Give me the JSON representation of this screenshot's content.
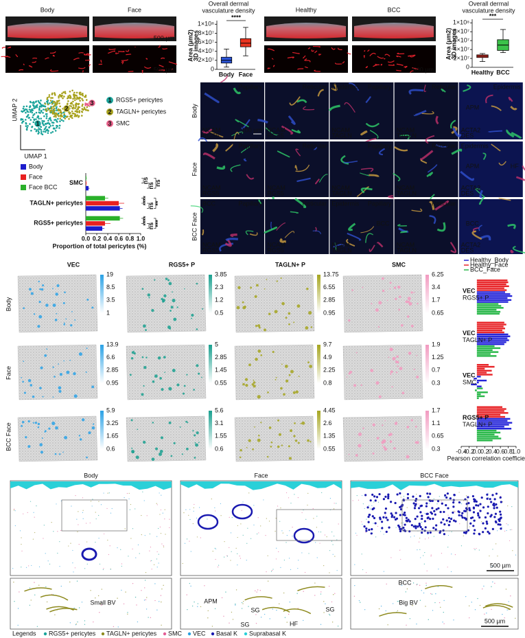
{
  "figure": {
    "panel_3d": {
      "panels": [
        {
          "title": "Body"
        },
        {
          "title": "Face",
          "scales": [
            "500 µm",
            "500 µm"
          ]
        },
        {
          "title": "Healthy"
        },
        {
          "title": "BCC",
          "scales": [
            "500 µm"
          ]
        }
      ]
    },
    "umap": {
      "x_label": "UMAP 1",
      "y_label": "UMAP 2",
      "clusters": [
        {
          "id": 1,
          "label": "RGS5+ pericytes",
          "color": "#1aa39a"
        },
        {
          "id": 2,
          "label": "TAGLN+ pericytes",
          "color": "#a8a21e"
        },
        {
          "id": 3,
          "label": "SMC",
          "color": "#e8608a"
        }
      ]
    },
    "microscopy": {
      "rows": [
        {
          "label": "Body",
          "cells": [
            {
              "tags": [
                "",
                "Papillary"
              ],
              "markers": [
                "NCAM",
                "RGS5"
              ],
              "scale": "100 µm"
            },
            {
              "tags": [
                "",
                "Reticular"
              ],
              "markers": [
                "NCAM",
                "RGS5"
              ]
            },
            {
              "tags": [
                "Epidermis",
                "Papillary"
              ],
              "markers": [
                "NCAM",
                "TAGLN"
              ]
            },
            {
              "tags": [
                "",
                "Reticular"
              ],
              "markers": [
                "NCAM",
                "TAGLN"
              ]
            },
            {
              "tags": [
                "",
                "Epidermis",
                "APM"
              ],
              "markers": [
                "ACTA2",
                "DES"
              ]
            }
          ]
        },
        {
          "label": "Face",
          "cells": [
            {
              "tags": [
                "",
                "Papillary"
              ],
              "markers": [
                "NCAM",
                "RGS5"
              ]
            },
            {
              "tags": [
                "",
                "Reticular"
              ],
              "markers": [
                "NCAM",
                "RGS5"
              ]
            },
            {
              "tags": [
                "",
                "Papillary"
              ],
              "markers": [
                "NCAM",
                "TAGLN"
              ]
            },
            {
              "tags": [
                "",
                "Reticular"
              ],
              "markers": [
                "NCAM",
                "TAGLN"
              ]
            },
            {
              "tags": [
                "Epidermis",
                "",
                "APM",
                "HF"
              ],
              "markers": [
                "ACTA2",
                "DES"
              ]
            }
          ]
        },
        {
          "label": "BCC Face",
          "cells": [
            {
              "tags": [
                "BCC",
                "Papillary"
              ],
              "markers": [
                "NCAM",
                "RGS5"
              ]
            },
            {
              "tags": [
                "",
                "Reticular"
              ],
              "markers": [
                "NCAM",
                "RGS5"
              ]
            },
            {
              "tags": [
                "Epidermis",
                "Papillary",
                "",
                "BCC"
              ],
              "markers": [
                "NCAM",
                "TAGLN"
              ]
            },
            {
              "tags": [
                "",
                "Reticular"
              ],
              "markers": [
                "NCAM",
                "TAGLN"
              ]
            },
            {
              "tags": [
                "",
                "",
                "BCC"
              ],
              "markers": [
                "ACTA2",
                "DES"
              ]
            }
          ]
        }
      ]
    },
    "spatial": {
      "columns": [
        {
          "label": "VEC",
          "color": "#2ba2e6"
        },
        {
          "label": "RGS5+ P",
          "color": "#1aa08f"
        },
        {
          "label": "TAGLN+ P",
          "color": "#a5a520"
        },
        {
          "label": "SMC",
          "color": "#f29ac0"
        }
      ],
      "rows": [
        {
          "label": "Body",
          "scales": [
            [
              19,
              8.5,
              3.5,
              1
            ],
            [
              3.85,
              2.3,
              1.2,
              0.5
            ],
            [
              13.75,
              6.55,
              2.85,
              0.95
            ],
            [
              6.25,
              3.4,
              1.7,
              0.65
            ]
          ]
        },
        {
          "label": "Face",
          "scales": [
            [
              13.9,
              6.6,
              2.85,
              0.95
            ],
            [
              5,
              2.85,
              1.45,
              0.55
            ],
            [
              9.7,
              4.9,
              2.25,
              0.8
            ],
            [
              1.9,
              1.25,
              0.7,
              0.3
            ]
          ]
        },
        {
          "label": "BCC Face",
          "scales": [
            [
              5.9,
              3.25,
              1.65,
              0.6
            ],
            [
              5.6,
              3.1,
              1.55,
              0.6
            ],
            [
              4.45,
              2.6,
              1.35,
              0.55
            ],
            [
              1.7,
              1.1,
              0.65,
              0.3
            ]
          ]
        }
      ]
    },
    "segmentation": {
      "panels": [
        {
          "title": "Body",
          "inset_labels": [
            "Small BV"
          ]
        },
        {
          "title": "Face",
          "inset_labels": [
            "APM",
            "SG",
            "SG",
            "SG",
            "HF"
          ]
        },
        {
          "title": "BCC Face",
          "inset_labels": [
            "BCC",
            "Big BV"
          ],
          "scales": [
            "500 µm",
            "500 µm"
          ]
        }
      ],
      "legend_title": "Legends",
      "legend": [
        {
          "label": "RGS5+ pericytes",
          "color": "#1aa39a"
        },
        {
          "label": "TAGLN+ pericytes",
          "color": "#8e8a1e"
        },
        {
          "label": "SMC",
          "color": "#e35d95"
        },
        {
          "label": "VEC",
          "color": "#2aa0e0"
        },
        {
          "label": "Basal K",
          "color": "#1a1ab0"
        },
        {
          "label": "Suprabasal K",
          "color": "#2ad0d8"
        }
      ]
    }
  },
  "chart_data": [
    {
      "type": "box",
      "title_lines": [
        "Overall dermal",
        "vasculature density"
      ],
      "y_label_lines": [
        "3D images",
        "Area (µm2)"
      ],
      "categories": [
        "Body",
        "Face"
      ],
      "colors": [
        "#2b54d8",
        "#e8341f"
      ],
      "min": [
        5000000,
        30000000
      ],
      "q1": [
        14000000,
        50000000
      ],
      "median": [
        20000000,
        58000000
      ],
      "q3": [
        27000000,
        68000000
      ],
      "max": [
        45000000,
        93000000
      ],
      "ylim": [
        0,
        105000000
      ],
      "yticks": [
        0,
        {
          "value": 20000000,
          "label": "2×10⁷"
        },
        {
          "value": 40000000,
          "label": "4×10⁷"
        },
        {
          "value": 60000000,
          "label": "6×10⁷"
        },
        {
          "value": 80000000,
          "label": "8×10⁷"
        },
        {
          "value": 100000000,
          "label": "1×10⁸"
        }
      ],
      "significance": "****"
    },
    {
      "type": "box",
      "title_lines": [
        "Overall dermal",
        "vasculature density"
      ],
      "y_label_lines": [
        "3D images",
        "Area (µm2)"
      ],
      "categories": [
        "Healthy",
        "BCC"
      ],
      "colors": [
        "#e8342a",
        "#3cc24a"
      ],
      "min": [
        13000000,
        33000000
      ],
      "q1": [
        22000000,
        38000000
      ],
      "median": [
        25000000,
        50000000
      ],
      "q3": [
        28000000,
        62000000
      ],
      "max": [
        31000000,
        85000000
      ],
      "ylim": [
        0,
        105000000
      ],
      "yticks": [
        0,
        {
          "value": 20000000,
          "label": "2×10⁷"
        },
        {
          "value": 40000000,
          "label": "4×10⁷"
        },
        {
          "value": 60000000,
          "label": "6×10⁷"
        },
        {
          "value": 80000000,
          "label": "8×10⁷"
        },
        {
          "value": 100000000,
          "label": "1×10⁸"
        }
      ],
      "significance": "***"
    },
    {
      "type": "hbar",
      "x_label": "Proportion of total pericytes (%)",
      "categories": [
        "SMC",
        "TAGLN+ pericytes",
        "RGS5+ pericytes"
      ],
      "series": [
        {
          "name": "Body",
          "color": "#1c1ccc",
          "values": [
            0.05,
            0.62,
            0.3
          ],
          "errors": [
            0.02,
            0.05,
            0.04
          ]
        },
        {
          "name": "Face",
          "color": "#e82020",
          "values": [
            0.01,
            0.6,
            0.35
          ],
          "errors": [
            0.01,
            0.1,
            0.1
          ]
        },
        {
          "name": "Face BCC",
          "color": "#2ab02a",
          "values": [
            0.01,
            0.35,
            0.62
          ],
          "errors": [
            0.01,
            0.06,
            0.06
          ]
        }
      ],
      "significance": [
        [
          "ns",
          "ns",
          "ns"
        ],
        [
          "****",
          "ns",
          "**"
        ],
        [
          "****",
          "ns",
          "***"
        ]
      ],
      "xlim": [
        0,
        1
      ],
      "xticks": [
        {
          "value": 0,
          "label": "0.0"
        },
        0.2,
        0.4,
        0.6,
        0.8,
        {
          "value": 1,
          "label": "1.0"
        }
      ]
    },
    {
      "type": "corr",
      "x_label": "Pearson correlation coefficient",
      "group_labels": [
        [
          "VEC",
          "RGS5+ P"
        ],
        [
          "VEC",
          "TAGLN+ P"
        ],
        [
          "VEC",
          "SMC"
        ],
        [
          "RGS5+ P",
          "TAGLN+ P"
        ]
      ],
      "series": [
        {
          "name": "Healthy_Body",
          "color": "#2626d9",
          "values": [
            [
              0.72,
              0.85,
              0.9,
              0.78,
              0.88,
              0.8
            ],
            [
              0.8,
              0.85,
              0.78,
              0.82,
              0.75,
              0.7
            ],
            [
              0.1,
              -0.08,
              0.25,
              0.05,
              -0.15,
              0.12
            ],
            [
              0.85,
              0.78,
              0.9,
              0.82,
              0.7,
              0.88
            ]
          ]
        },
        {
          "name": "Healthy_Face",
          "color": "#e8262a",
          "values": [
            [
              0.78,
              0.8,
              0.75,
              0.82,
              0.7,
              0.76
            ],
            [
              0.7,
              0.75,
              0.68,
              0.72,
              0.65,
              0.7
            ],
            [
              0.3,
              0.45,
              0.2,
              0.38,
              0.25,
              0.4
            ],
            [
              0.65,
              0.75,
              0.7,
              0.8,
              0.6,
              0.72
            ]
          ]
        },
        {
          "name": "BCC_Face",
          "color": "#2ab84a",
          "values": [
            [
              0.55,
              0.62,
              0.68,
              0.5,
              0.6,
              0.58
            ],
            [
              0.45,
              0.6,
              0.4,
              0.55,
              0.35,
              0.5
            ],
            [
              0.15,
              -0.05,
              0.28,
              0.1,
              0.2,
              0.05
            ],
            [
              0.5,
              0.6,
              0.45,
              0.55,
              0.62,
              0.4
            ]
          ]
        }
      ],
      "xlim": [
        -0.4,
        1
      ],
      "xticks": [
        -0.4,
        -0.2,
        {
          "value": 0,
          "label": "0.0"
        },
        0.2,
        0.4,
        0.6,
        0.8,
        {
          "value": 1,
          "label": "1.0"
        }
      ]
    }
  ]
}
